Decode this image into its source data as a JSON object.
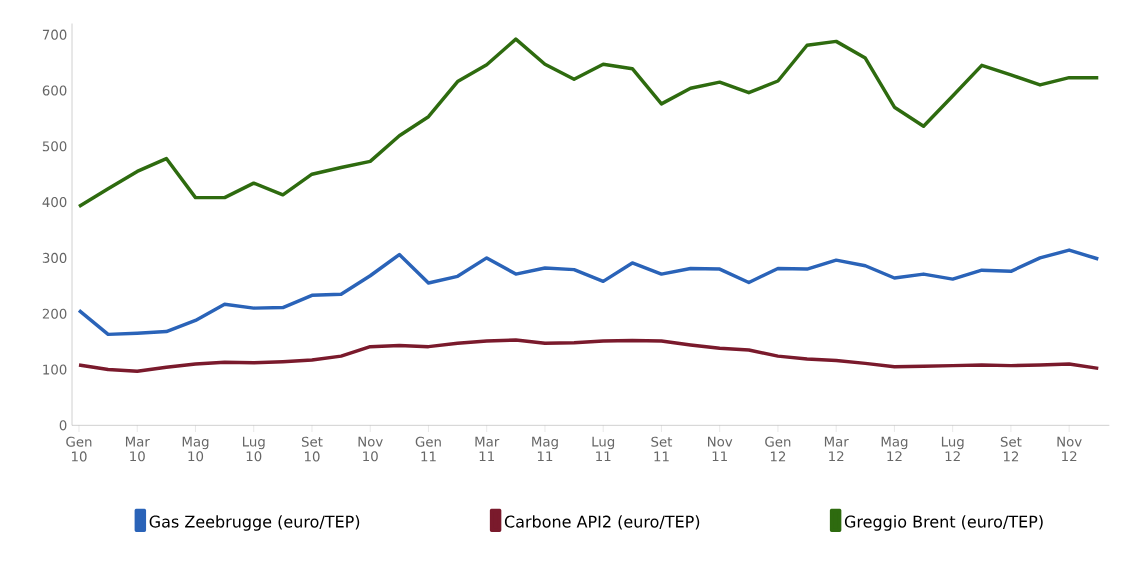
{
  "chart_data": {
    "type": "line",
    "categories": [
      "Gen 10",
      null,
      "Mar 10",
      null,
      "Mag 10",
      null,
      "Lug 10",
      null,
      "Set 10",
      null,
      "Nov 10",
      null,
      "Gen 11",
      null,
      "Mar 11",
      null,
      "Mag 11",
      null,
      "Lug 11",
      null,
      "Set 11",
      null,
      "Nov 11",
      null,
      "Gen 12",
      null,
      "Mar 12",
      null,
      "Mag 12",
      null,
      "Lug 12",
      null,
      "Set 12",
      null,
      "Nov 12",
      null
    ],
    "series": [
      {
        "name": "Gas Zeebrugge (euro/TEP)",
        "color": "#2a63b8",
        "values": [
          206,
          163,
          165,
          168,
          188,
          217,
          210,
          211,
          233,
          235,
          268,
          306,
          255,
          267,
          300,
          271,
          282,
          279,
          258,
          291,
          271,
          281,
          280,
          256,
          281,
          280,
          296,
          286,
          264,
          271,
          262,
          278,
          276,
          300,
          314,
          298
        ]
      },
      {
        "name": "Carbone API2 (euro/TEP)",
        "color": "#7a1a2c",
        "values": [
          108,
          100,
          97,
          104,
          110,
          113,
          112,
          114,
          117,
          124,
          141,
          143,
          141,
          147,
          151,
          153,
          147,
          148,
          151,
          152,
          151,
          144,
          138,
          135,
          124,
          119,
          116,
          111,
          105,
          106,
          107,
          108,
          107,
          108,
          110,
          102
        ]
      },
      {
        "name": "Greggio Brent (euro/TEP)",
        "color": "#2e6b0f",
        "values": [
          392,
          424,
          455,
          478,
          408,
          408,
          434,
          413,
          450,
          462,
          473,
          519,
          553,
          616,
          646,
          692,
          647,
          620,
          647,
          639,
          576,
          604,
          615,
          596,
          617,
          681,
          688,
          658,
          570,
          536,
          590,
          645,
          628,
          610,
          623,
          623
        ]
      }
    ],
    "ylim": [
      0,
      720
    ],
    "yticks": [
      0,
      100,
      200,
      300,
      400,
      500,
      600,
      700
    ],
    "legend": "bottom",
    "grid": false,
    "marker": "none",
    "line_style": "solid"
  }
}
